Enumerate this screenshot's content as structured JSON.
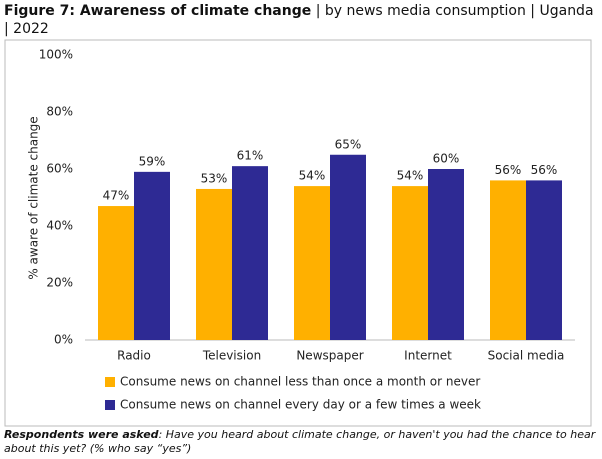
{
  "chart_data": {
    "type": "bar",
    "title": "Figure 7: Awareness of climate change",
    "subtitle": "| by news media consumption | Uganda | 2022",
    "y_label": "% aware of climate change",
    "categories": [
      "Radio",
      "Television",
      "Newspaper",
      "Internet",
      "Social media"
    ],
    "series": [
      {
        "name": "Consume news on channel less than once a month or never",
        "color": "#ffb000",
        "values": [
          47,
          53,
          54,
          54,
          56
        ],
        "value_labels": [
          "47%",
          "53%",
          "54%",
          "54%",
          "56%"
        ]
      },
      {
        "name": "Consume news on channel every day or a few times a week",
        "color": "#2e2a94",
        "values": [
          59,
          61,
          65,
          60,
          56
        ],
        "value_labels": [
          "59%",
          "61%",
          "65%",
          "60%",
          "56%"
        ]
      }
    ],
    "ylim": [
      0,
      100
    ],
    "yticks": [
      {
        "value": 0,
        "label": "0%"
      },
      {
        "value": 20,
        "label": "20%"
      },
      {
        "value": 40,
        "label": "40%"
      },
      {
        "value": 60,
        "label": "60%"
      },
      {
        "value": 80,
        "label": "80%"
      },
      {
        "value": 100,
        "label": "100%"
      }
    ],
    "grid": false,
    "note_label": "Respondents were asked",
    "note": ": Have you heard about climate change, or haven't you had the chance to hear about this yet? (% who say “yes”)"
  }
}
